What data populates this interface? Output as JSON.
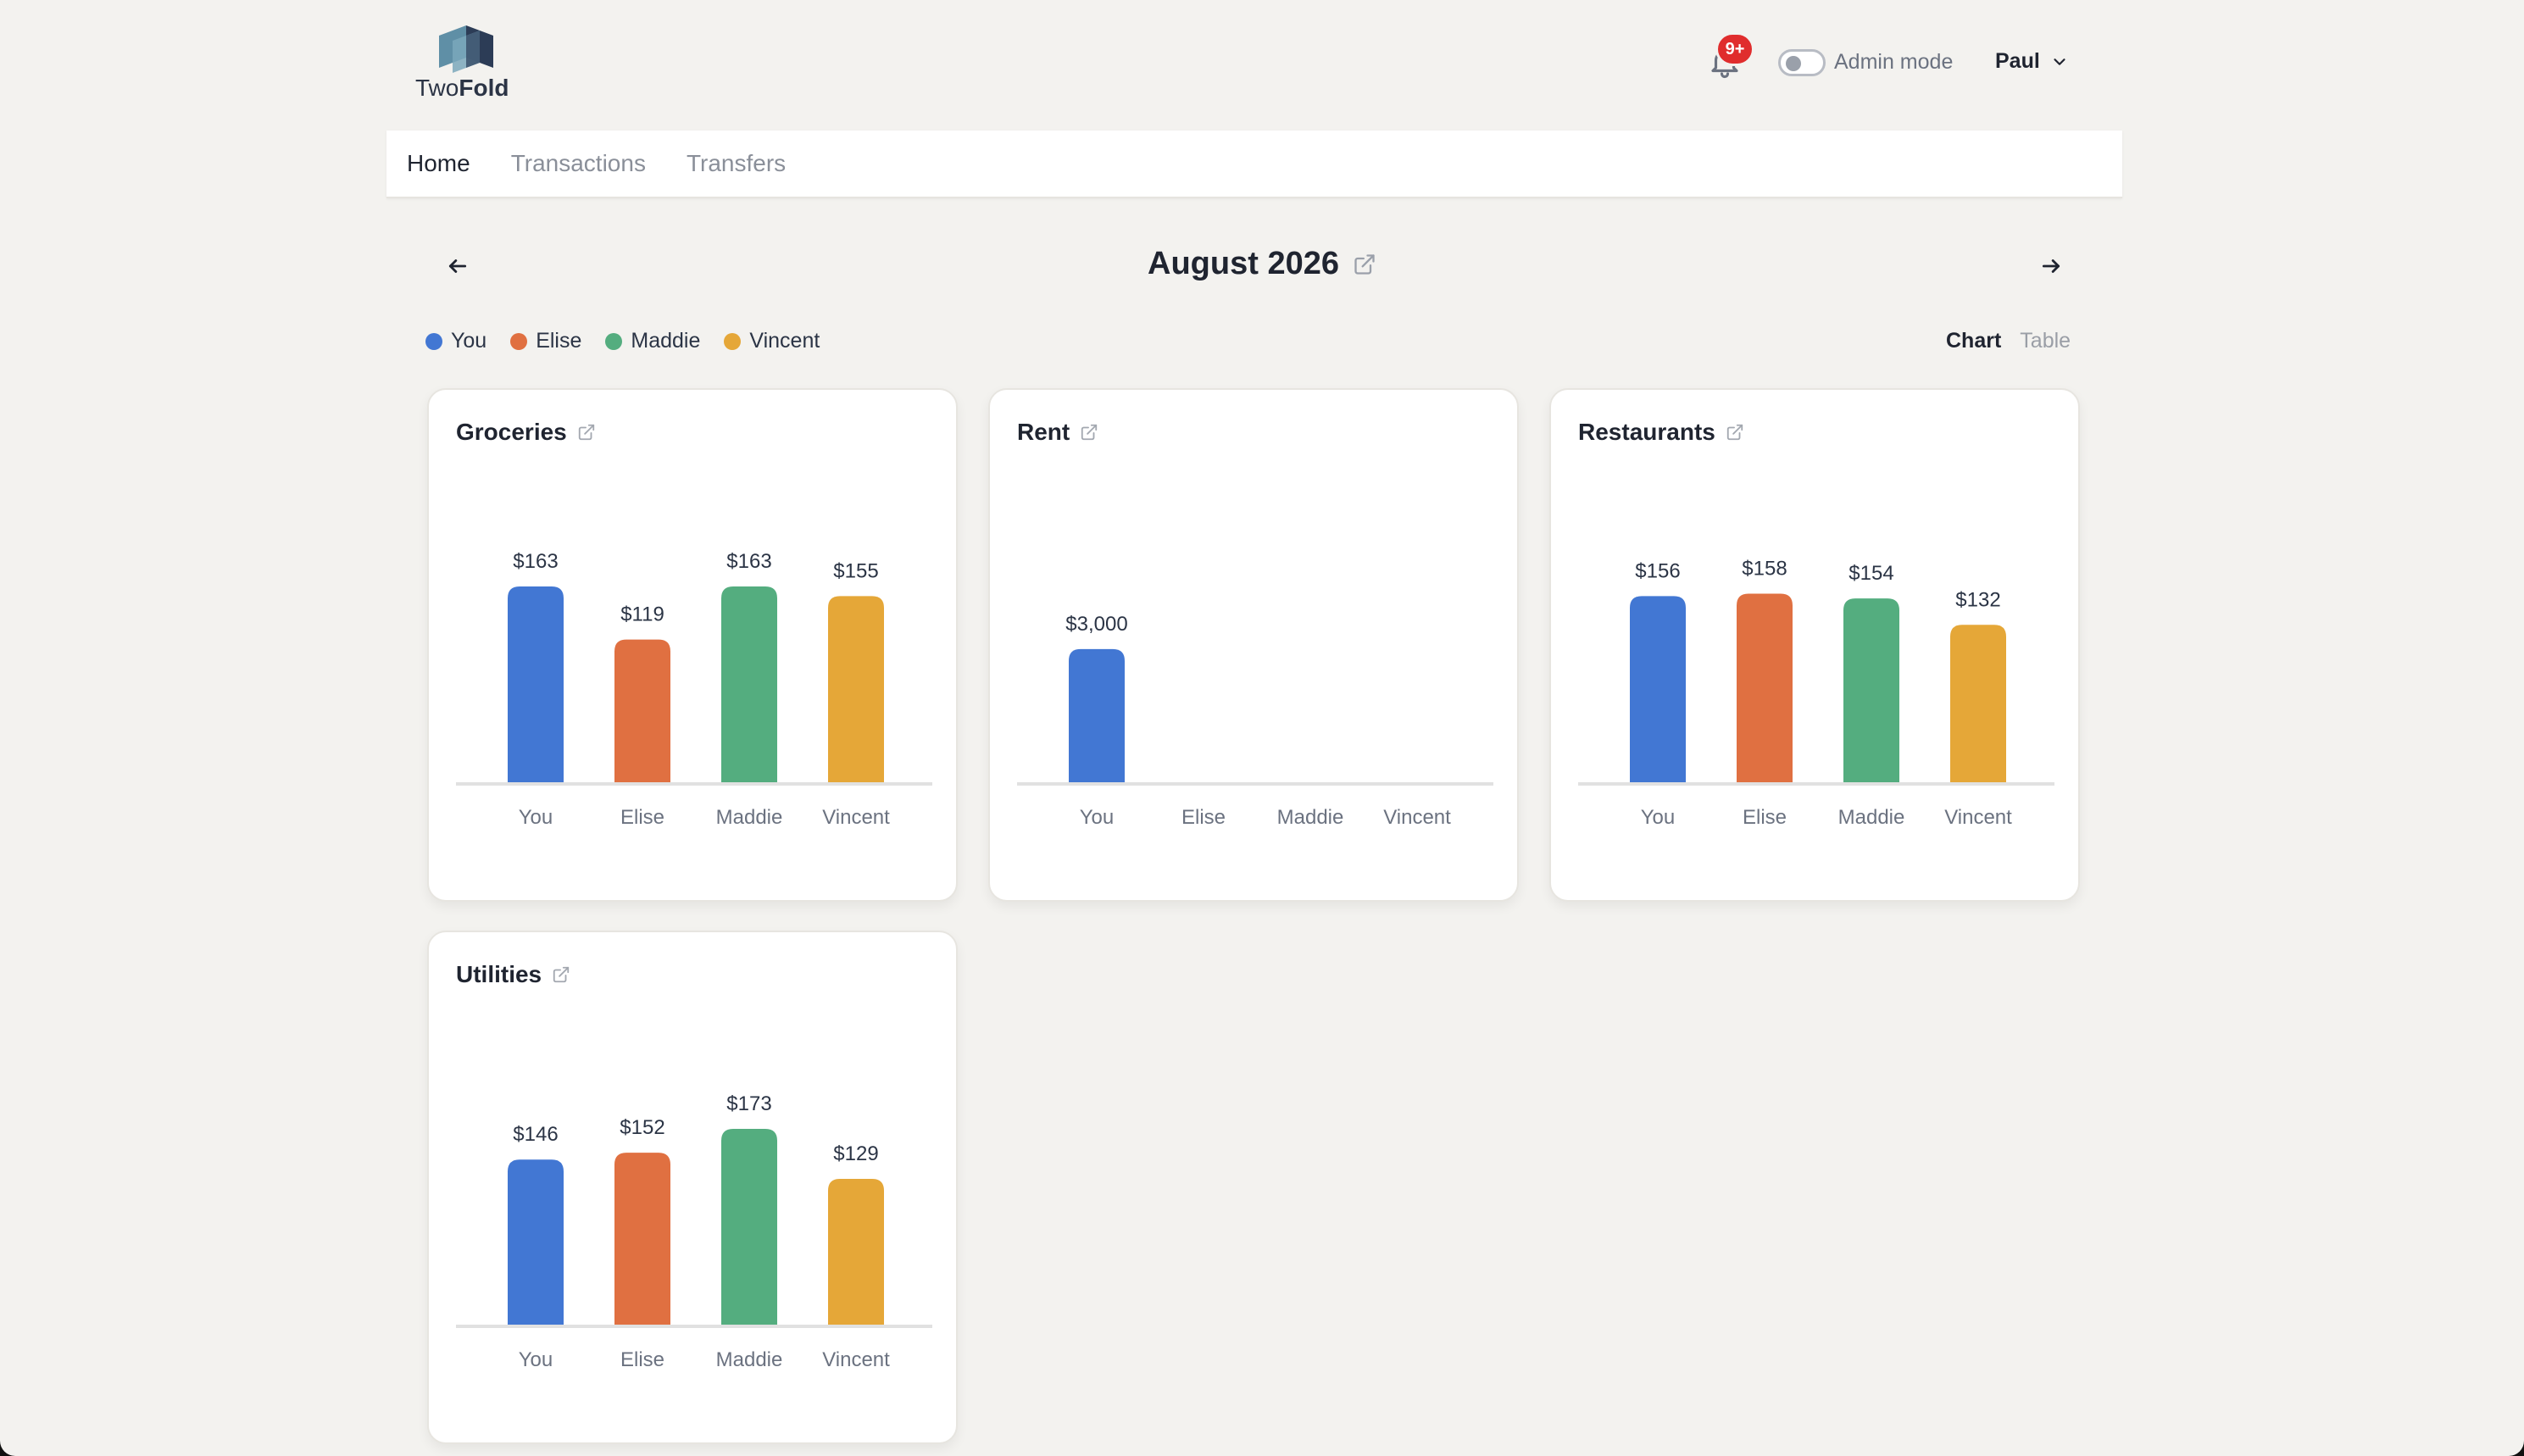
{
  "app": {
    "logo_text_light": "Two",
    "logo_text_bold": "Fold"
  },
  "header": {
    "notifications_badge": "9+",
    "admin_mode_label": "Admin mode",
    "admin_mode_on": false,
    "user_name": "Paul"
  },
  "nav": {
    "tabs": [
      {
        "label": "Home",
        "active": true
      },
      {
        "label": "Transactions",
        "active": false
      },
      {
        "label": "Transfers",
        "active": false
      }
    ]
  },
  "month": {
    "title": "August 2026"
  },
  "legend": [
    {
      "label": "You",
      "color": "#4277d3"
    },
    {
      "label": "Elise",
      "color": "#e07041"
    },
    {
      "label": "Maddie",
      "color": "#54ad7f"
    },
    {
      "label": "Vincent",
      "color": "#e5a738"
    }
  ],
  "view_toggle": {
    "chart": "Chart",
    "table": "Table",
    "active": "Chart"
  },
  "chart_data": [
    {
      "type": "bar",
      "title": "Groceries",
      "categories": [
        "You",
        "Elise",
        "Maddie",
        "Vincent"
      ],
      "values": [
        163,
        119,
        163,
        155
      ],
      "labels": [
        "$163",
        "$119",
        "$163",
        "$155"
      ],
      "ymax": 163
    },
    {
      "type": "bar",
      "title": "Rent",
      "categories": [
        "You",
        "Elise",
        "Maddie",
        "Vincent"
      ],
      "values": [
        3000,
        0,
        0,
        0
      ],
      "labels": [
        "$3,000",
        "",
        "",
        ""
      ],
      "ymax": 4400
    },
    {
      "type": "bar",
      "title": "Restaurants",
      "categories": [
        "You",
        "Elise",
        "Maddie",
        "Vincent"
      ],
      "values": [
        156,
        158,
        154,
        132
      ],
      "labels": [
        "$156",
        "$158",
        "$154",
        "$132"
      ],
      "ymax": 164
    },
    {
      "type": "bar",
      "title": "Utilities",
      "categories": [
        "You",
        "Elise",
        "Maddie",
        "Vincent"
      ],
      "values": [
        146,
        152,
        173,
        129
      ],
      "labels": [
        "$146",
        "$152",
        "$173",
        "$129"
      ],
      "ymax": 173
    }
  ]
}
